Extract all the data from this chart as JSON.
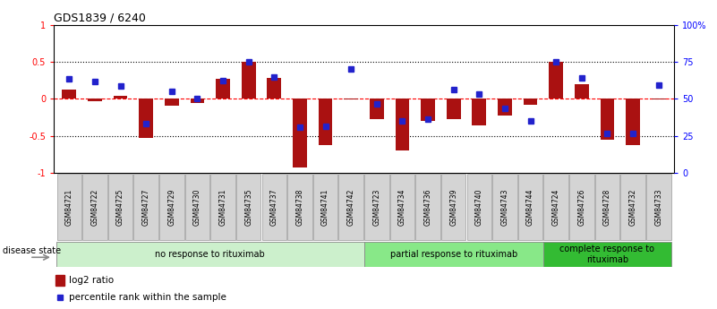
{
  "title": "GDS1839 / 6240",
  "samples": [
    "GSM84721",
    "GSM84722",
    "GSM84725",
    "GSM84727",
    "GSM84729",
    "GSM84730",
    "GSM84731",
    "GSM84735",
    "GSM84737",
    "GSM84738",
    "GSM84741",
    "GSM84742",
    "GSM84723",
    "GSM84734",
    "GSM84736",
    "GSM84739",
    "GSM84740",
    "GSM84743",
    "GSM84744",
    "GSM84724",
    "GSM84726",
    "GSM84728",
    "GSM84732",
    "GSM84733"
  ],
  "log2_ratio": [
    0.12,
    -0.03,
    0.04,
    -0.53,
    -0.09,
    -0.05,
    0.27,
    0.5,
    0.28,
    -0.93,
    -0.62,
    -0.01,
    -0.27,
    -0.7,
    -0.3,
    -0.27,
    -0.36,
    -0.22,
    -0.08,
    0.5,
    0.2,
    -0.55,
    -0.62,
    -0.01
  ],
  "percentile_rank": [
    0.27,
    0.23,
    0.17,
    -0.33,
    0.1,
    0.01,
    0.25,
    0.5,
    0.3,
    -0.38,
    -0.37,
    0.4,
    -0.07,
    -0.3,
    -0.27,
    0.13,
    0.07,
    -0.13,
    -0.3,
    0.5,
    0.28,
    -0.47,
    -0.47,
    0.18
  ],
  "groups": [
    {
      "label": "no response to rituximab",
      "start": 0,
      "end": 12,
      "color": "#ccf0cc"
    },
    {
      "label": "partial response to rituximab",
      "start": 12,
      "end": 19,
      "color": "#88e888"
    },
    {
      "label": "complete response to\nrituximab",
      "start": 19,
      "end": 24,
      "color": "#33bb33"
    }
  ],
  "bar_color": "#aa1111",
  "dot_color": "#2222cc",
  "ylim": [
    -1.0,
    1.0
  ],
  "yticks_left": [
    -1.0,
    -0.5,
    0.0,
    0.5,
    1.0
  ],
  "ytick_labels_left": [
    "-1",
    "-0.5",
    "0",
    "0.5",
    "1"
  ],
  "yticks_right_vals": [
    -1.0,
    -0.5,
    0.0,
    0.5,
    1.0
  ],
  "ytick_labels_right": [
    "0",
    "25",
    "50",
    "75",
    "100%"
  ],
  "disease_state_label": "disease state"
}
